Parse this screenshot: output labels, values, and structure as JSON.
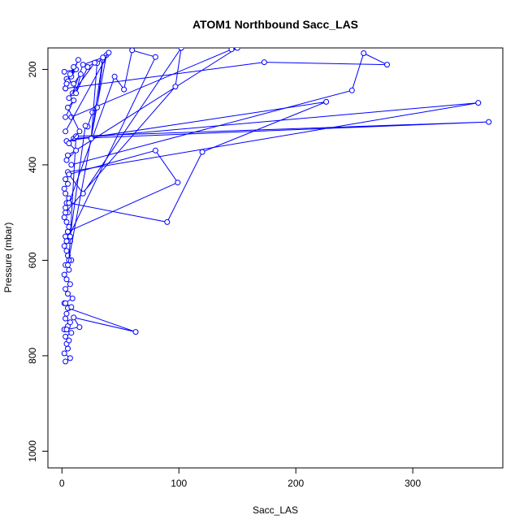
{
  "chart_data": {
    "type": "line",
    "title": "ATOM1 Northbound Sacc_LAS",
    "xlabel": "Sacc_LAS",
    "ylabel": "Pressure (mbar)",
    "xlim": [
      -12,
      377
    ],
    "ylim": [
      1035,
      155
    ],
    "y_reversed": true,
    "x_ticks": [
      0,
      100,
      200,
      300
    ],
    "y_ticks": [
      200,
      400,
      600,
      800,
      1000
    ],
    "marker": "open-circle",
    "line_color": "#0000ff",
    "grid": false,
    "series": [
      {
        "x": [
          3,
          7,
          2,
          5,
          4,
          6,
          3,
          8,
          2,
          5,
          7,
          3,
          4,
          6,
          2,
          9,
          5,
          3,
          7,
          4,
          2,
          6,
          3,
          8,
          5,
          4,
          2,
          7,
          3,
          5,
          6,
          4,
          2,
          5,
          3,
          4,
          6,
          3,
          2,
          5
        ],
        "y": [
          812,
          805,
          795,
          785,
          775,
          768,
          760,
          752,
          745,
          738,
          730,
          722,
          712,
          700,
          690,
          680,
          670,
          660,
          650,
          640,
          630,
          620,
          610,
          600,
          590,
          580,
          570,
          560,
          550,
          540,
          530,
          520,
          510,
          500,
          490,
          480,
          470,
          460,
          450,
          440
        ]
      },
      {
        "x": [
          4,
          15,
          10,
          63,
          5,
          8,
          3
        ],
        "y": [
          745,
          740,
          720,
          750,
          700,
          698,
          690
        ]
      },
      {
        "x": [
          3,
          6,
          80,
          99,
          5
        ],
        "y": [
          430,
          420,
          370,
          437,
          540
        ]
      },
      {
        "x": [
          5,
          356,
          10,
          365,
          12,
          6
        ],
        "y": [
          415,
          270,
          345,
          310,
          340,
          600
        ]
      },
      {
        "x": [
          4,
          226,
          120,
          90,
          6
        ],
        "y": [
          350,
          268,
          373,
          520,
          480
        ]
      },
      {
        "x": [
          8,
          248,
          258,
          278,
          173,
          3
        ],
        "y": [
          400,
          244,
          166,
          190,
          185,
          240
        ]
      },
      {
        "x": [
          5,
          150,
          145,
          8
        ],
        "y": [
          380,
          155,
          158,
          300
        ]
      },
      {
        "x": [
          3,
          97,
          102,
          18,
          6
        ],
        "y": [
          500,
          236,
          155,
          460,
          420
        ]
      },
      {
        "x": [
          4,
          80,
          60,
          53,
          45,
          6
        ],
        "y": [
          560,
          174,
          160,
          242,
          215,
          480
        ]
      },
      {
        "x": [
          5,
          38,
          35,
          30,
          26,
          22,
          20,
          7
        ],
        "y": [
          610,
          170,
          181,
          280,
          290,
          320,
          318,
          550
        ]
      },
      {
        "x": [
          3,
          40,
          30,
          25,
          35,
          18,
          9
        ],
        "y": [
          330,
          165,
          187,
          345,
          175,
          190,
          250
        ]
      },
      {
        "x": [
          6,
          28,
          22,
          12,
          16,
          10,
          4
        ],
        "y": [
          260,
          186,
          195,
          250,
          210,
          230,
          220
        ]
      },
      {
        "x": [
          2,
          12,
          8,
          14,
          5,
          10,
          3,
          7,
          4
        ],
        "y": [
          205,
          200,
          215,
          180,
          225,
          195,
          240,
          210,
          230
        ]
      },
      {
        "x": [
          3,
          10,
          5,
          15,
          6,
          12,
          4
        ],
        "y": [
          300,
          265,
          280,
          330,
          355,
          370,
          390
        ]
      }
    ]
  }
}
